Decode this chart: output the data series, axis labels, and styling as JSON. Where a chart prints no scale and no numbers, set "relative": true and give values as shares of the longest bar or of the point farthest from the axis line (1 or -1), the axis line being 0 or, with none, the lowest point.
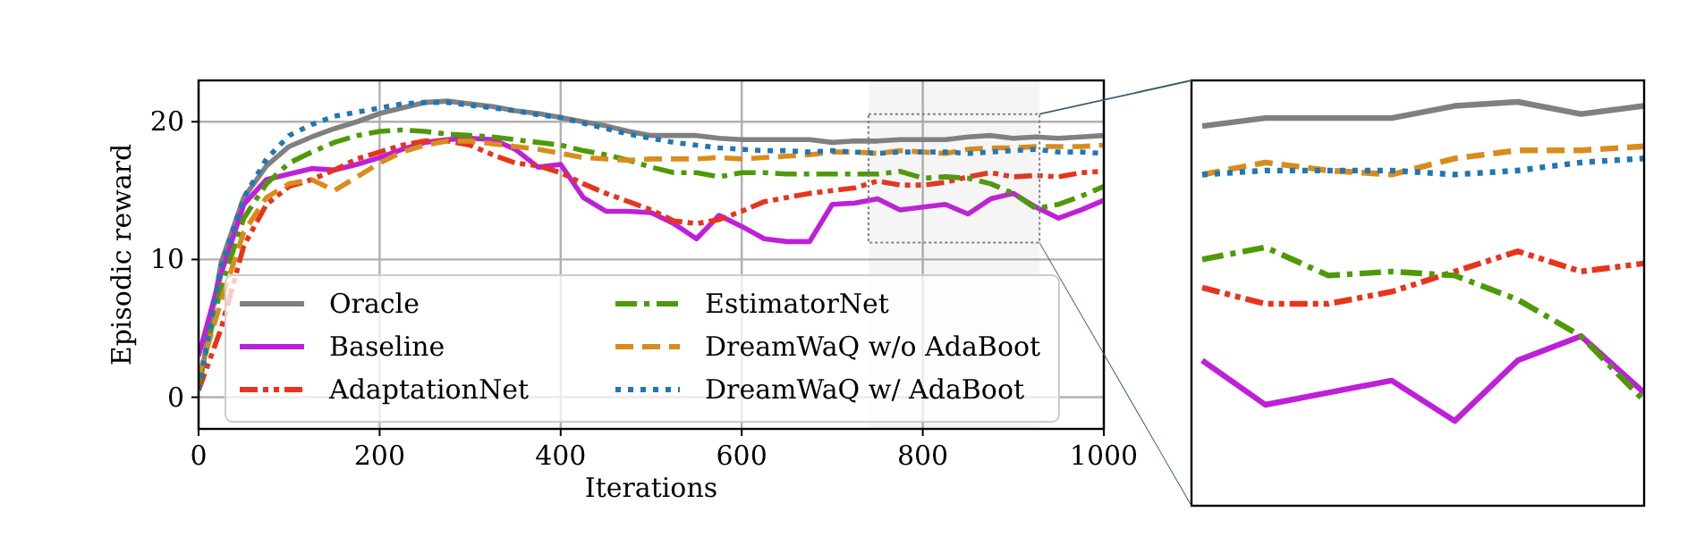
{
  "chart_data": [
    {
      "type": "line",
      "xlabel": "Iterations",
      "ylabel": "Episodic reward",
      "xlim": [
        0,
        1000
      ],
      "ylim": [
        -2.3,
        23
      ],
      "xticks": [
        0,
        200,
        400,
        600,
        800,
        1000
      ],
      "yticks": [
        0,
        10,
        20
      ],
      "grid": true,
      "legend": "bottom left",
      "marker": "none",
      "bands": [
        {
          "axis": "x",
          "from": 740,
          "to": 929,
          "color": "#808080"
        }
      ],
      "x": [
        0,
        25,
        50,
        75,
        100,
        125,
        150,
        175,
        200,
        225,
        250,
        275,
        300,
        325,
        350,
        375,
        400,
        425,
        450,
        475,
        500,
        525,
        550,
        575,
        600,
        625,
        650,
        675,
        700,
        725,
        750,
        775,
        800,
        825,
        850,
        875,
        900,
        925,
        950,
        975,
        1000
      ],
      "series": [
        {
          "name": "Oracle",
          "color": "#808080",
          "line_style": "solid",
          "values": [
            0.5,
            9.8,
            14.5,
            16.8,
            18.2,
            18.9,
            19.5,
            20.0,
            20.6,
            21.0,
            21.4,
            21.5,
            21.3,
            21.1,
            20.8,
            20.6,
            20.3,
            20.0,
            19.7,
            19.3,
            19.0,
            19.0,
            19.0,
            18.8,
            18.7,
            18.7,
            18.7,
            18.7,
            18.5,
            18.6,
            18.6,
            18.7,
            18.7,
            18.7,
            18.9,
            19.0,
            18.8,
            18.9,
            18.8,
            18.9,
            19.0
          ]
        },
        {
          "name": "Baseline",
          "color": "#bf1fd9",
          "line_style": "solid",
          "values": [
            3,
            9,
            14,
            15.8,
            16.2,
            16.6,
            16.5,
            16.9,
            17.4,
            18.0,
            18.5,
            18.7,
            18.8,
            18.7,
            18.0,
            16.7,
            16.9,
            14.5,
            13.5,
            13.5,
            13.4,
            12.6,
            11.5,
            13.2,
            12.4,
            11.5,
            11.3,
            11.3,
            14.0,
            14.1,
            14.4,
            13.6,
            13.8,
            14.0,
            13.3,
            14.4,
            14.8,
            13.8,
            13.0,
            13.6,
            14.3
          ]
        },
        {
          "name": "AdaptationNet",
          "color": "#e8341c",
          "line_style": "dashdotdot",
          "values": [
            0.5,
            5,
            11,
            14.0,
            15.3,
            15.8,
            16.5,
            17.3,
            17.8,
            18.3,
            18.6,
            18.6,
            18.3,
            17.6,
            17.0,
            16.8,
            16.3,
            15.5,
            14.8,
            14.2,
            13.6,
            12.8,
            12.6,
            12.9,
            13.5,
            14.2,
            14.5,
            14.8,
            15.0,
            15.2,
            15.7,
            15.4,
            15.4,
            15.6,
            16.0,
            16.3,
            16.0,
            16.1,
            16.0,
            16.3,
            16.4
          ]
        },
        {
          "name": "EstimatorNet",
          "color": "#4e9a06",
          "line_style": "dashdot",
          "values": [
            1,
            8,
            13,
            15.5,
            17.0,
            17.8,
            18.5,
            19.0,
            19.3,
            19.4,
            19.3,
            19.1,
            19.0,
            18.9,
            18.7,
            18.5,
            18.3,
            17.9,
            17.6,
            17.2,
            16.7,
            16.3,
            16.3,
            16.0,
            16.3,
            16.3,
            16.2,
            16.2,
            16.2,
            16.2,
            16.2,
            16.4,
            15.9,
            16.0,
            15.9,
            15.5,
            14.8,
            13.7,
            14.0,
            14.6,
            15.3
          ]
        },
        {
          "name": "DreamWaQ w/o AdaBoot",
          "color": "#d98c1c",
          "line_style": "dashed",
          "values": [
            1.5,
            7,
            12,
            14.5,
            15.5,
            15.8,
            15.0,
            16.0,
            17.0,
            17.8,
            18.3,
            18.6,
            18.6,
            18.4,
            18.2,
            18.0,
            17.7,
            17.4,
            17.3,
            17.2,
            17.3,
            17.3,
            17.3,
            17.4,
            17.3,
            17.4,
            17.5,
            17.6,
            17.8,
            17.8,
            17.7,
            17.9,
            17.8,
            17.7,
            18.0,
            18.1,
            18.1,
            18.2,
            18.2,
            18.2,
            18.3
          ]
        },
        {
          "name": "DreamWaQ w/ AdaBoot",
          "color": "#1f77b4",
          "line_style": "dotted",
          "values": [
            0.5,
            9.5,
            14.5,
            17.3,
            19.0,
            19.8,
            20.4,
            20.7,
            21.0,
            21.3,
            21.4,
            21.4,
            21.2,
            21.0,
            20.8,
            20.5,
            20.3,
            19.9,
            19.5,
            19.1,
            18.8,
            18.5,
            18.3,
            18.1,
            18.0,
            17.9,
            17.9,
            17.8,
            17.9,
            17.8,
            17.7,
            17.8,
            17.8,
            17.8,
            17.7,
            17.8,
            17.9,
            18.0,
            17.8,
            17.8,
            17.7
          ]
        }
      ]
    },
    {
      "type": "line",
      "relative": true,
      "marker": "none",
      "categories": [
        null,
        null,
        null,
        null,
        null,
        null,
        null,
        null
      ],
      "series": [
        {
          "color": "#808080",
          "line_style": "solid",
          "values": [
            0.94,
            0.96,
            0.96,
            0.96,
            0.99,
            1,
            0.97,
            0.99
          ]
        },
        {
          "color": "#bf1fd9",
          "line_style": "solid",
          "values": [
            0.36,
            0.25,
            0.28,
            0.31,
            0.21,
            0.36,
            0.42,
            0.28
          ]
        },
        {
          "color": "#e8341c",
          "line_style": "dashdotdot",
          "values": [
            0.54,
            0.5,
            0.5,
            0.53,
            0.58,
            0.63,
            0.58,
            0.6
          ]
        },
        {
          "color": "#4e9a06",
          "line_style": "dashdot",
          "values": [
            0.61,
            0.64,
            0.57,
            0.58,
            0.57,
            0.51,
            0.42,
            0.26
          ]
        },
        {
          "color": "#d98c1c",
          "line_style": "dashed",
          "values": [
            0.82,
            0.85,
            0.83,
            0.82,
            0.86,
            0.88,
            0.88,
            0.89
          ]
        },
        {
          "color": "#1f77b4",
          "line_style": "dotted",
          "values": [
            0.82,
            0.83,
            0.83,
            0.83,
            0.82,
            0.83,
            0.85,
            0.86
          ]
        }
      ]
    }
  ]
}
